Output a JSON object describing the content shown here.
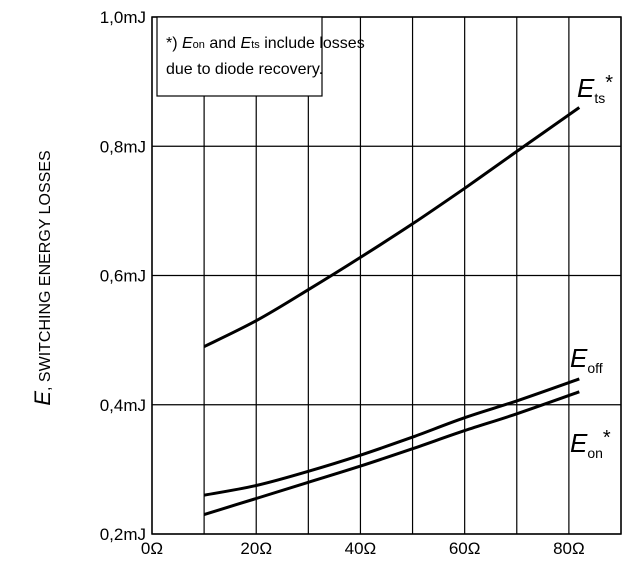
{
  "chart_data": {
    "type": "line",
    "title": "",
    "xlabel": "",
    "ylabel": {
      "symbol": "E",
      "text": ", SWITCHING ENERGY LOSSES"
    },
    "xlim": [
      0,
      90
    ],
    "ylim": [
      0.2,
      1.0
    ],
    "x_ticks": [
      0,
      10,
      20,
      30,
      40,
      50,
      60,
      70,
      80,
      90
    ],
    "x_tick_labels": [
      {
        "value": 0,
        "label": "0Ω"
      },
      {
        "value": 20,
        "label": "20Ω"
      },
      {
        "value": 40,
        "label": "40Ω"
      },
      {
        "value": 60,
        "label": "60Ω"
      },
      {
        "value": 80,
        "label": "80Ω"
      }
    ],
    "y_ticks": [
      0.2,
      0.4,
      0.6,
      0.8,
      1.0
    ],
    "y_tick_labels": [
      {
        "value": 0.2,
        "label": "0,2mJ"
      },
      {
        "value": 0.4,
        "label": "0,4mJ"
      },
      {
        "value": 0.6,
        "label": "0,6mJ"
      },
      {
        "value": 0.8,
        "label": "0,8mJ"
      },
      {
        "value": 1.0,
        "label": "1,0mJ"
      }
    ],
    "grid": true,
    "series": [
      {
        "name": "Ets*",
        "label": {
          "main": "E",
          "sub": "ts",
          "sup": "*"
        },
        "x": [
          10,
          20,
          30,
          40,
          50,
          60,
          70,
          82
        ],
        "y": [
          0.49,
          0.53,
          0.578,
          0.628,
          0.68,
          0.735,
          0.792,
          0.86
        ]
      },
      {
        "name": "Eoff",
        "label": {
          "main": "E",
          "sub": "off",
          "sup": ""
        },
        "x": [
          10,
          20,
          30,
          40,
          50,
          60,
          70,
          82
        ],
        "y": [
          0.26,
          0.275,
          0.297,
          0.322,
          0.35,
          0.38,
          0.406,
          0.44
        ]
      },
      {
        "name": "Eon*",
        "label": {
          "main": "E",
          "sub": "on",
          "sup": "*"
        },
        "x": [
          10,
          20,
          30,
          40,
          50,
          60,
          70,
          82
        ],
        "y": [
          0.23,
          0.255,
          0.28,
          0.305,
          0.332,
          0.36,
          0.386,
          0.42
        ]
      }
    ],
    "annotation": {
      "line1_prefix": "*) ",
      "e_symbol": "E",
      "sub_on": "on",
      "and_text": " and ",
      "sub_ts": "ts",
      "line1_suffix": " include losses",
      "line2": "due to diode recovery."
    }
  }
}
